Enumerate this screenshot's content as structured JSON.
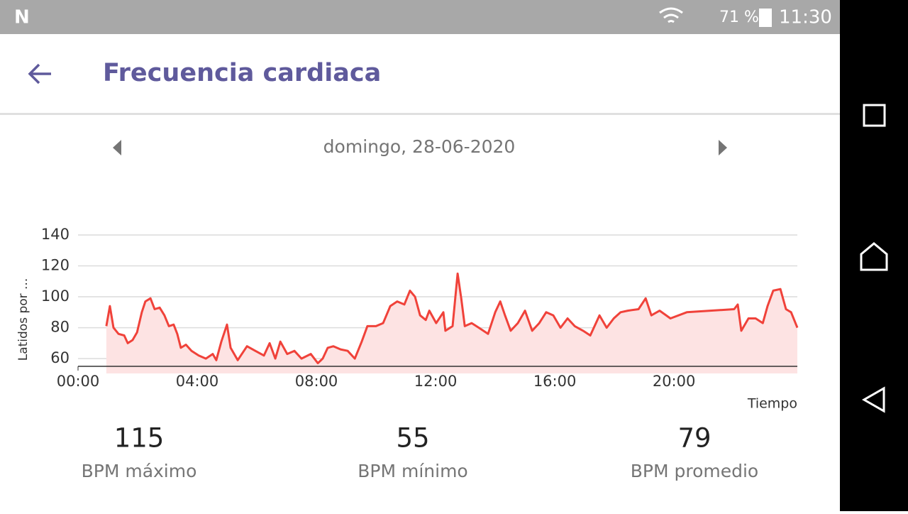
{
  "status_bar": {
    "battery": "71 %",
    "time": "11:30"
  },
  "header": {
    "title": "Frecuencia cardiaca"
  },
  "date": "domingo, 28-06-2020",
  "chart_data": {
    "type": "line",
    "y_label": "Latidos por ...",
    "x_label": "Tiempo",
    "color": "#f0423a",
    "fill": "#fde3e3",
    "grid": true,
    "xlim": [
      0,
      24.14
    ],
    "ylim": [
      55,
      140
    ],
    "yticks": [
      60,
      80,
      100,
      120,
      140
    ],
    "xticks": [
      {
        "value": 0,
        "label": "00:00"
      },
      {
        "value": 4,
        "label": "04:00"
      },
      {
        "value": 8,
        "label": "08:00"
      },
      {
        "value": 12,
        "label": "12:00"
      },
      {
        "value": 16,
        "label": "16:00"
      },
      {
        "value": 20,
        "label": "20:00"
      }
    ],
    "x": [
      0.95,
      1.07,
      1.19,
      1.36,
      1.55,
      1.67,
      1.83,
      1.98,
      2.14,
      2.26,
      2.43,
      2.57,
      2.74,
      2.9,
      3.05,
      3.21,
      3.33,
      3.45,
      3.62,
      3.81,
      4.05,
      4.29,
      4.52,
      4.64,
      4.81,
      5.0,
      5.12,
      5.36,
      5.67,
      5.95,
      6.24,
      6.43,
      6.62,
      6.79,
      7.02,
      7.26,
      7.5,
      7.81,
      8.05,
      8.21,
      8.38,
      8.57,
      8.81,
      9.05,
      9.29,
      9.52,
      9.71,
      10.0,
      10.24,
      10.48,
      10.71,
      10.95,
      11.14,
      11.31,
      11.48,
      11.67,
      11.79,
      12.02,
      12.26,
      12.33,
      12.57,
      12.74,
      12.86,
      12.98,
      13.21,
      13.45,
      13.76,
      14.0,
      14.17,
      14.33,
      14.52,
      14.76,
      15.0,
      15.24,
      15.48,
      15.71,
      15.95,
      16.19,
      16.43,
      16.67,
      16.95,
      17.19,
      17.5,
      17.74,
      17.98,
      18.21,
      18.45,
      18.81,
      19.05,
      19.24,
      19.52,
      19.88,
      20.43,
      22.02,
      22.14,
      22.26,
      22.5,
      22.74,
      22.98,
      23.14,
      23.33,
      23.57,
      23.76,
      23.93,
      24.14
    ],
    "values": [
      81,
      94,
      80,
      76,
      75,
      70,
      72,
      77,
      90,
      97,
      99,
      92,
      93,
      88,
      81,
      82,
      76,
      67,
      69,
      65,
      62,
      60,
      63,
      59,
      71,
      82,
      67,
      59,
      68,
      65,
      62,
      70,
      60,
      71,
      63,
      65,
      60,
      63,
      57,
      60,
      67,
      68,
      66,
      65,
      60,
      71,
      81,
      81,
      83,
      94,
      97,
      95,
      104,
      100,
      88,
      85,
      91,
      83,
      90,
      78,
      81,
      115,
      99,
      81,
      83,
      80,
      76,
      90,
      97,
      88,
      78,
      83,
      91,
      78,
      83,
      90,
      88,
      80,
      86,
      81,
      78,
      75,
      88,
      80,
      86,
      90,
      91,
      92,
      99,
      88,
      91,
      86,
      90,
      92,
      95,
      78,
      86,
      86,
      83,
      94,
      104,
      105,
      92,
      90,
      80
    ]
  },
  "stats": [
    {
      "value": 115,
      "label": "BPM máximo"
    },
    {
      "value": 55,
      "label": "BPM mínimo"
    },
    {
      "value": 79,
      "label": "BPM promedio"
    }
  ]
}
